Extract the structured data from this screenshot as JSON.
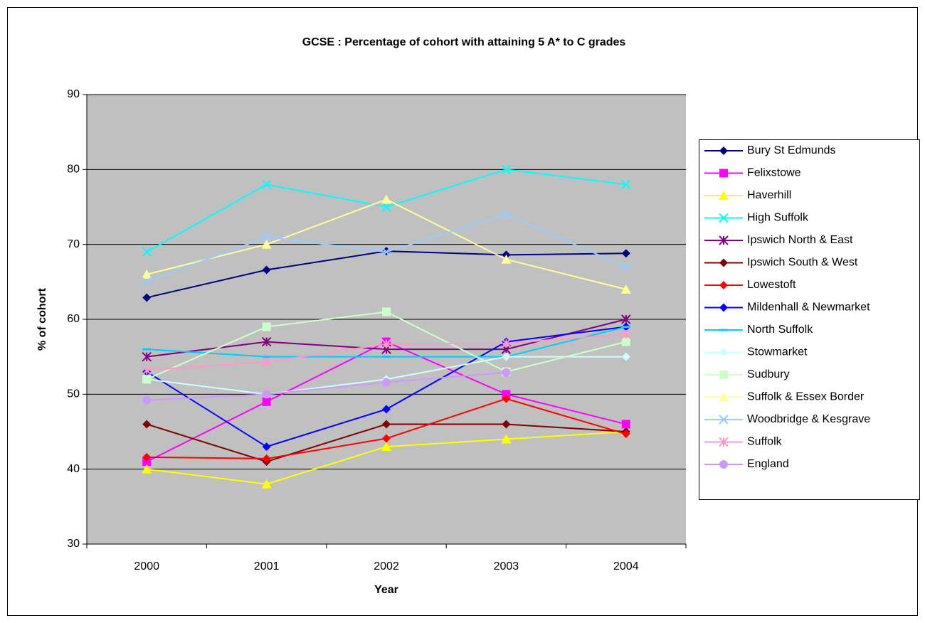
{
  "chart_data": {
    "type": "line",
    "title": "GCSE : Percentage of cohort with attaining 5 A* to C grades",
    "x_label": "Year",
    "y_label": "% of cohort",
    "categories": [
      "2000",
      "2001",
      "2002",
      "2003",
      "2004"
    ],
    "ylim": [
      30,
      90
    ],
    "yticks": [
      30,
      40,
      50,
      60,
      70,
      80,
      90
    ],
    "grid": true,
    "legend": "right",
    "series": [
      {
        "name": "Bury St Edmunds",
        "color": "#000080",
        "marker": "diamond",
        "values": [
          62.9,
          66.6,
          69.1,
          68.6,
          68.8
        ]
      },
      {
        "name": "Felixstowe",
        "color": "#ff00ff",
        "marker": "square",
        "values": [
          41,
          49,
          57,
          50,
          46
        ]
      },
      {
        "name": "Haverhill",
        "color": "#ffff00",
        "marker": "triangle",
        "values": [
          40,
          38,
          43,
          44,
          45
        ]
      },
      {
        "name": "High Suffolk",
        "color": "#00ffff",
        "marker": "x",
        "values": [
          69,
          78,
          75,
          80,
          78
        ]
      },
      {
        "name": "Ipswich North & East",
        "color": "#800080",
        "marker": "star",
        "values": [
          55,
          57,
          56,
          56,
          60
        ]
      },
      {
        "name": "Ipswich South & West",
        "color": "#800000",
        "marker": "diamond",
        "values": [
          46,
          41,
          46,
          46,
          45
        ]
      },
      {
        "name": "Lowestoft",
        "color": "#ff0000",
        "marker": "diamond",
        "values": [
          41.6,
          41.4,
          44.1,
          49.4,
          44.7
        ]
      },
      {
        "name": "Mildenhall & Newmarket",
        "color": "#0000ff",
        "marker": "diamond",
        "values": [
          53,
          43,
          48,
          57,
          59
        ]
      },
      {
        "name": "North Suffolk",
        "color": "#00ccff",
        "marker": "dash",
        "values": [
          56,
          55,
          55,
          55,
          59
        ]
      },
      {
        "name": "Stowmarket",
        "color": "#ccffff",
        "marker": "diamond",
        "values": [
          52,
          50,
          52,
          55,
          55
        ]
      },
      {
        "name": "Sudbury",
        "color": "#ccffcc",
        "marker": "square",
        "values": [
          52,
          59,
          61,
          53,
          57
        ]
      },
      {
        "name": "Suffolk & Essex Border",
        "color": "#ffff99",
        "marker": "triangle",
        "values": [
          66,
          70,
          76,
          68,
          64
        ]
      },
      {
        "name": "Woodbridge & Kesgrave",
        "color": "#99ccff",
        "marker": "x",
        "values": [
          65,
          71,
          69,
          74,
          67
        ]
      },
      {
        "name": "Suffolk",
        "color": "#ff99cc",
        "marker": "star",
        "values": [
          53.2,
          54.3,
          56.7,
          56.8,
          58
        ]
      },
      {
        "name": "England",
        "color": "#cc99ff",
        "marker": "circle",
        "values": [
          49.2,
          50,
          51.6,
          52.9,
          null
        ]
      }
    ]
  }
}
